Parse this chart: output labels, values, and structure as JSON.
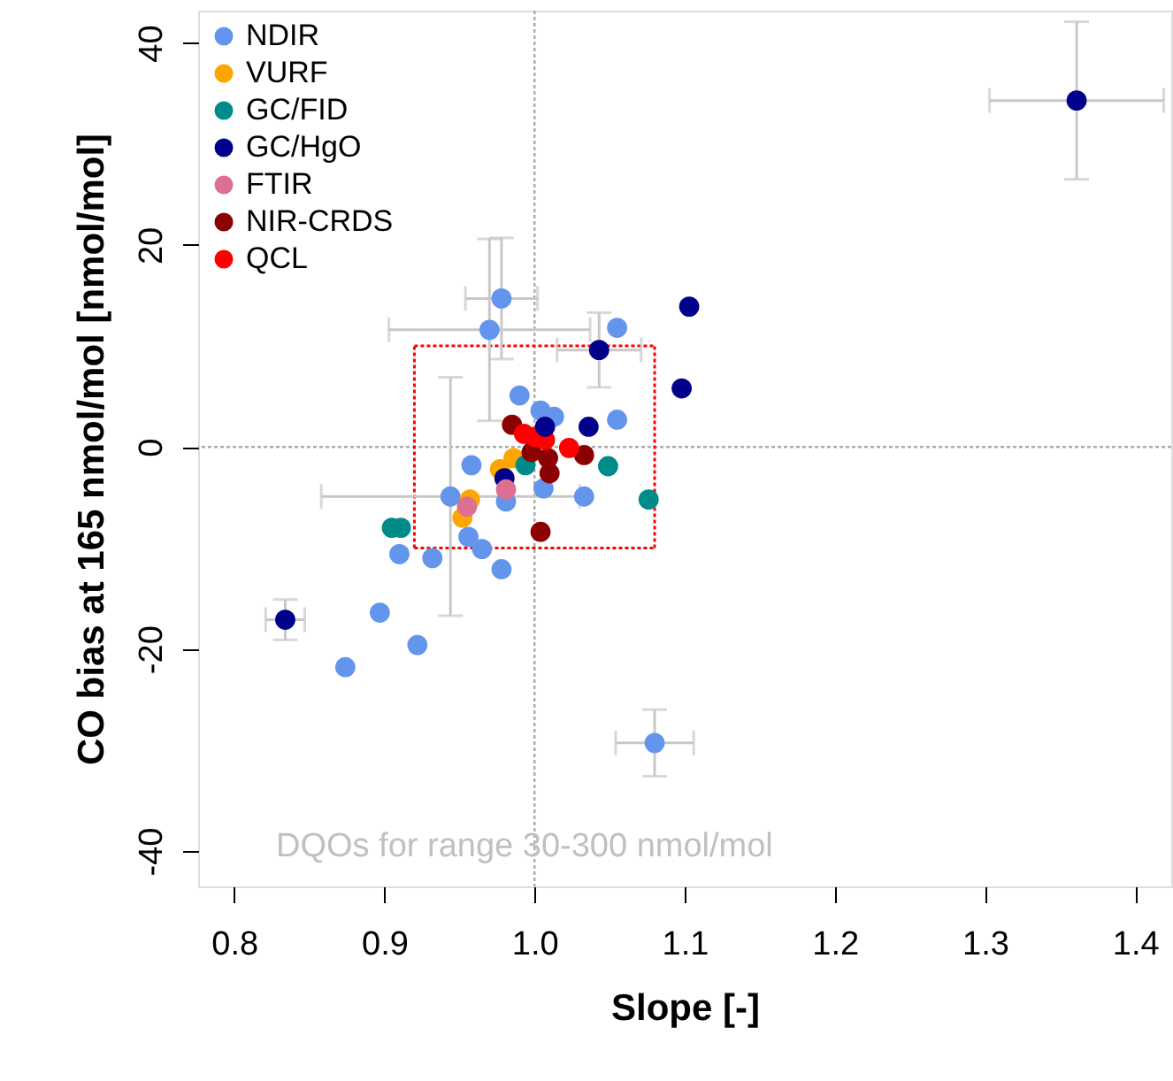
{
  "chart_data": {
    "type": "scatter",
    "xlabel": "Slope [-]",
    "ylabel": "CO bias at 165 nmol/mol [nmol/mol]",
    "xlim": [
      0.776,
      1.424
    ],
    "ylim": [
      -43.5,
      43.2
    ],
    "xticks": [
      0.8,
      0.9,
      {
        "value": 1.0,
        "label": "1.0"
      },
      1.1,
      1.2,
      1.3,
      1.4
    ],
    "yticks": [
      -40,
      -20,
      0,
      20,
      40
    ],
    "grid": false,
    "legend": "top left",
    "marker": "circle",
    "ref_lines": [
      {
        "axis": "x",
        "value": 1.0,
        "color": "#aaaaaa",
        "line_style": "dotted"
      },
      {
        "axis": "y",
        "value": 0,
        "color": "#aaaaaa",
        "line_style": "dotted"
      }
    ],
    "annotations": [
      "DQOs for range 30-300 nmol/mol"
    ],
    "series": [
      {
        "name": "NDIR",
        "color": "#6495ed",
        "x": [
          0.978,
          0.97,
          1.055,
          1.055,
          1.033,
          0.944,
          0.956,
          0.965,
          0.978,
          0.932,
          0.91,
          0.897,
          0.922,
          0.874,
          1.08,
          1.004,
          1.013,
          1.006,
          0.981
        ],
        "values": [
          14.7,
          11.6,
          11.8,
          2.7,
          -4.9,
          -4.9,
          -8.9,
          -10.1,
          -12.1,
          -11.0,
          -10.6,
          -16.4,
          -19.6,
          -21.8,
          -29.3,
          3.6,
          3.0,
          -4.1,
          -5.4
        ],
        "errors": [
          6,
          9,
          null,
          null,
          null,
          11.8,
          null,
          null,
          null,
          null,
          null,
          null,
          null,
          null,
          3.3,
          null,
          null,
          null,
          null
        ],
        "xerrors": [
          0.024,
          0.067,
          null,
          null,
          null,
          0.086,
          null,
          null,
          null,
          null,
          null,
          null,
          null,
          null,
          0.026,
          null,
          null,
          null,
          null
        ]
      },
      {
        "name": "VURF",
        "color": "#ffa500",
        "x": [
          0.952,
          0.957,
          0.986,
          0.977
        ],
        "values": [
          -7.0,
          -5.2,
          -1.1,
          -2.2
        ]
      },
      {
        "name": "GC/FID",
        "color": "#008b8b",
        "x": [
          1.049,
          1.076,
          0.905,
          0.911,
          0.994
        ],
        "values": [
          -1.9,
          -5.2,
          -8.0,
          -8.0,
          -1.8
        ]
      },
      {
        "name": "GC/HgO",
        "color": "#00008b",
        "x": [
          1.043,
          1.036,
          0.834,
          1.361,
          0.98
        ],
        "values": [
          9.6,
          2.0,
          -17.1,
          34.3,
          -3.1
        ],
        "errors": [
          3.7,
          null,
          2,
          7.8,
          null
        ],
        "xerrors": [
          0.028,
          null,
          0.013,
          0.058,
          null
        ]
      },
      {
        "name": "FTIR",
        "color": "#db7093",
        "x": [
          0.955,
          0.981
        ],
        "values": [
          -5.9,
          -4.2
        ]
      },
      {
        "name": "NIR-CRDS",
        "color": "#8b0000",
        "x": [
          1.004,
          0.985,
          1.009,
          1.01,
          1.033,
          0.998
        ],
        "values": [
          -8.4,
          2.2,
          -1.1,
          -2.6,
          -0.8,
          -0.5
        ]
      },
      {
        "name": "QCL",
        "color": "#ff0000",
        "x": [
          0.993,
          1.007,
          1.023,
          1.0
        ],
        "values": [
          1.3,
          0.7,
          -0.1,
          1.0
        ]
      },
      {
        "type": "scatter",
        "color": "#6495ed",
        "x": [
          0.99,
          0.958
        ],
        "values": [
          5.1,
          -1.8
        ]
      },
      {
        "type": "scatter",
        "color": "#00008b",
        "x": [
          1.103,
          1.098,
          1.007
        ],
        "values": [
          13.9,
          5.8,
          2.0
        ]
      },
      {
        "type": "line",
        "color": "#ff0000",
        "line_style": "dotted",
        "marker": "none",
        "x": [
          0.92,
          1.08
        ],
        "values": [
          -10,
          -10
        ]
      },
      {
        "type": "line",
        "color": "#ff0000",
        "line_style": "dotted",
        "marker": "none",
        "x": [
          0.92,
          1.08
        ],
        "values": [
          10,
          10
        ]
      },
      {
        "type": "line",
        "color": "#ff0000",
        "line_style": "dotted",
        "marker": "none",
        "x": [
          0.92,
          0.92
        ],
        "values": [
          -10,
          10
        ]
      },
      {
        "type": "line",
        "color": "#ff0000",
        "line_style": "dotted",
        "marker": "none",
        "x": [
          1.08,
          1.08
        ],
        "values": [
          -10,
          10
        ]
      }
    ]
  }
}
